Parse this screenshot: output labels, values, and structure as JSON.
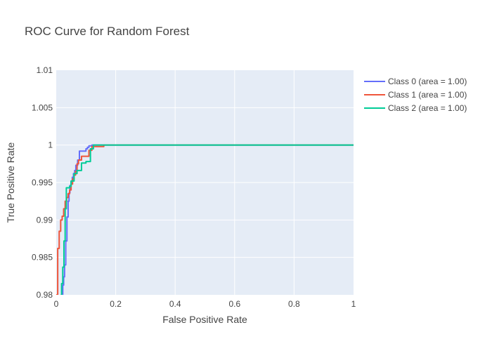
{
  "chart_data": {
    "type": "line",
    "title": "ROC Curve for Random Forest",
    "xlabel": "False Positive Rate",
    "ylabel": "True Positive Rate",
    "xlim": [
      0,
      1
    ],
    "ylim": [
      0.98,
      1.01
    ],
    "x_ticks": [
      0,
      0.2,
      0.4,
      0.6,
      0.8,
      1
    ],
    "x_tick_labels": [
      "0",
      "0.2",
      "0.4",
      "0.6",
      "0.8",
      "1"
    ],
    "y_ticks": [
      0.98,
      0.985,
      0.99,
      0.995,
      1,
      1.005,
      1.01
    ],
    "y_tick_labels": [
      "0.98",
      "0.985",
      "0.99",
      "0.995",
      "1",
      "1.005",
      "1.01"
    ],
    "grid": true,
    "legend_position": "top-right outside",
    "series": [
      {
        "name": "Class 0 (area = 1.00)",
        "color": "#636efa",
        "x": [
          0.02,
          0.02,
          0.022,
          0.022,
          0.025,
          0.025,
          0.028,
          0.028,
          0.032,
          0.032,
          0.036,
          0.036,
          0.04,
          0.04,
          0.043,
          0.043,
          0.046,
          0.046,
          0.05,
          0.05,
          0.054,
          0.054,
          0.058,
          0.058,
          0.062,
          0.062,
          0.066,
          0.066,
          0.072,
          0.072,
          0.078,
          0.078,
          0.1,
          0.1,
          0.105,
          0.105,
          0.11,
          0.11,
          0.12,
          0.12,
          1
        ],
        "y": [
          0.98,
          0.98,
          0.98,
          0.9813,
          0.9813,
          0.9824,
          0.9824,
          0.984,
          0.984,
          0.9872,
          0.9872,
          0.9904,
          0.9904,
          0.9925,
          0.9925,
          0.9936,
          0.9936,
          0.9946,
          0.9946,
          0.9952,
          0.9952,
          0.9957,
          0.9957,
          0.9962,
          0.9962,
          0.9966,
          0.9966,
          0.9973,
          0.9973,
          0.998,
          0.998,
          0.9992,
          0.9992,
          0.9995,
          0.9995,
          0.9997,
          0.9997,
          0.9999,
          0.9999,
          1,
          1
        ]
      },
      {
        "name": "Class 1 (area = 1.00)",
        "color": "#ef553b",
        "x": [
          0,
          0,
          0.005,
          0.005,
          0.01,
          0.01,
          0.015,
          0.015,
          0.02,
          0.02,
          0.025,
          0.025,
          0.03,
          0.03,
          0.035,
          0.035,
          0.04,
          0.04,
          0.045,
          0.045,
          0.05,
          0.05,
          0.055,
          0.055,
          0.06,
          0.06,
          0.065,
          0.065,
          0.07,
          0.07,
          0.075,
          0.075,
          0.085,
          0.085,
          0.1,
          0.1,
          0.11,
          0.11,
          0.12,
          0.12,
          0.16,
          0.16,
          1
        ],
        "y": [
          0.98,
          0.98,
          0.98,
          0.9862,
          0.9862,
          0.9885,
          0.9885,
          0.99,
          0.99,
          0.9905,
          0.9905,
          0.9915,
          0.9915,
          0.9925,
          0.9925,
          0.993,
          0.993,
          0.9935,
          0.9935,
          0.994,
          0.994,
          0.9948,
          0.9948,
          0.9955,
          0.9955,
          0.996,
          0.996,
          0.9965,
          0.9965,
          0.9975,
          0.9975,
          0.998,
          0.998,
          0.9985,
          0.9985,
          0.9985,
          0.9985,
          0.9993,
          0.9993,
          0.9998,
          0.9998,
          1,
          1
        ]
      },
      {
        "name": "Class 2 (area = 1.00)",
        "color": "#00cc96",
        "x": [
          0.015,
          0.015,
          0.018,
          0.018,
          0.022,
          0.022,
          0.026,
          0.026,
          0.03,
          0.03,
          0.034,
          0.034,
          0.045,
          0.045,
          0.05,
          0.05,
          0.06,
          0.06,
          0.07,
          0.07,
          0.085,
          0.085,
          0.1,
          0.1,
          0.115,
          0.115,
          0.125,
          0.125,
          1
        ],
        "y": [
          0.98,
          0.98,
          0.98,
          0.9815,
          0.9815,
          0.9837,
          0.9837,
          0.9872,
          0.9872,
          0.9915,
          0.9915,
          0.9943,
          0.9943,
          0.9945,
          0.9945,
          0.9952,
          0.9952,
          0.9962,
          0.9962,
          0.9966,
          0.9966,
          0.9976,
          0.9976,
          0.9978,
          0.9978,
          0.9995,
          0.9995,
          1,
          1
        ]
      }
    ]
  }
}
